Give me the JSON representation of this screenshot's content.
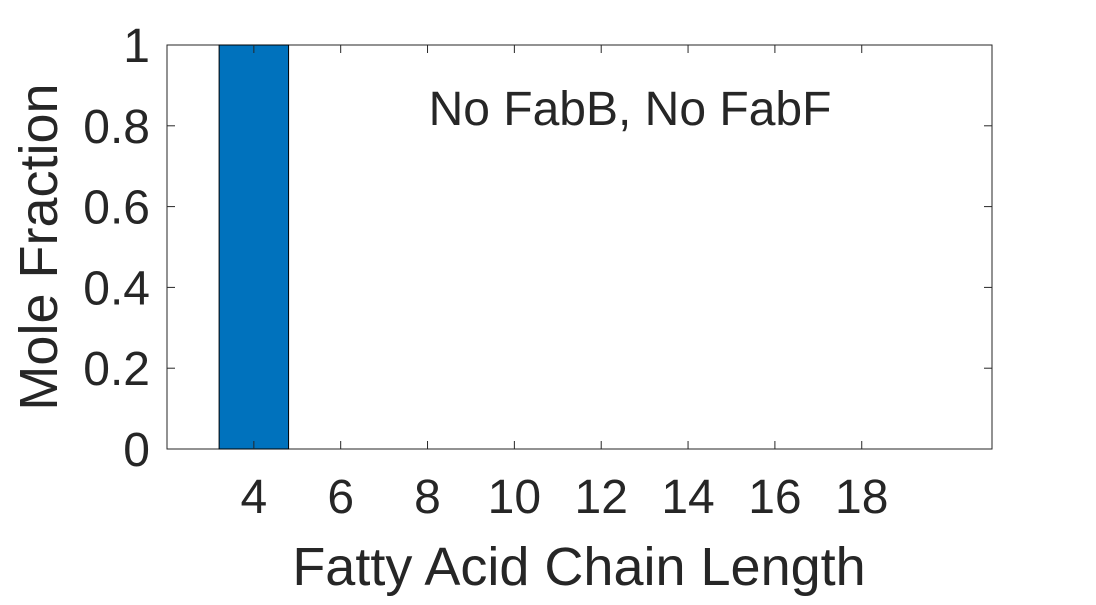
{
  "chart_data": {
    "type": "bar",
    "title": "",
    "annotation": "No FabB, No FabF",
    "xlabel": "Fatty Acid Chain Length",
    "ylabel": "Mole Fraction",
    "categories": [
      "4",
      "6",
      "8",
      "10",
      "12",
      "14",
      "16",
      "18"
    ],
    "values": [
      1,
      0,
      0,
      0,
      0,
      0,
      0,
      0
    ],
    "x_ticks": [
      "4",
      "6",
      "8",
      "10",
      "12",
      "14",
      "16",
      "18"
    ],
    "y_ticks": [
      "0",
      "0.2",
      "0.4",
      "0.6",
      "0.8",
      "1"
    ],
    "ylim": [
      0,
      1
    ],
    "xlim": [
      2,
      21
    ],
    "grid": false,
    "legend": "none",
    "bar_color": "#0072BD",
    "axis_color": "#262626"
  }
}
